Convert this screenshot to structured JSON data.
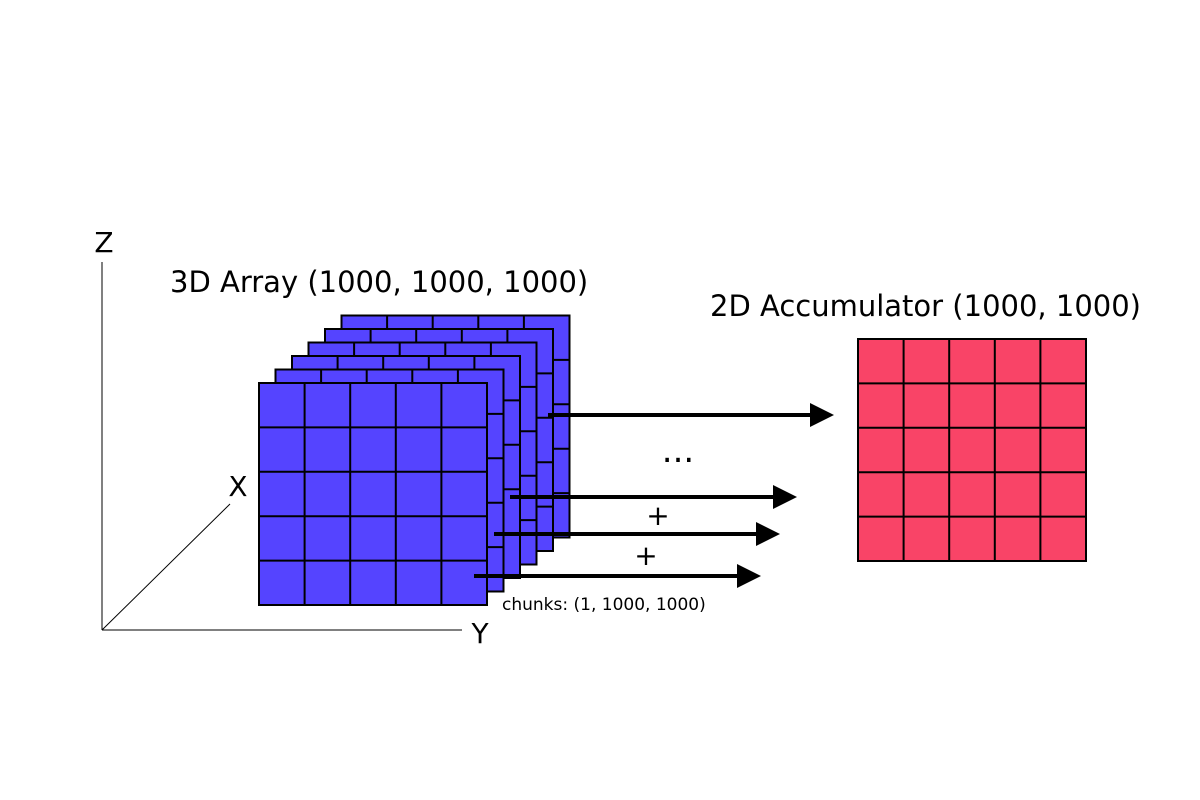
{
  "diagram": {
    "axes": {
      "z_label": "Z",
      "x_label": "X",
      "y_label": "Y"
    },
    "array_3d": {
      "title": "3D Array (1000, 1000, 1000)",
      "grid": {
        "rows": 5,
        "cols": 5
      },
      "slice_count": 6,
      "color": "#5544ff"
    },
    "accumulator_2d": {
      "title": "2D Accumulator (1000, 1000)",
      "grid": {
        "rows": 5,
        "cols": 5
      },
      "color": "#f94467"
    },
    "operators": {
      "ellipsis": "...",
      "plus_upper": "+",
      "plus_lower": "+"
    },
    "chunks_label": "chunks: (1, 1000, 1000)"
  }
}
